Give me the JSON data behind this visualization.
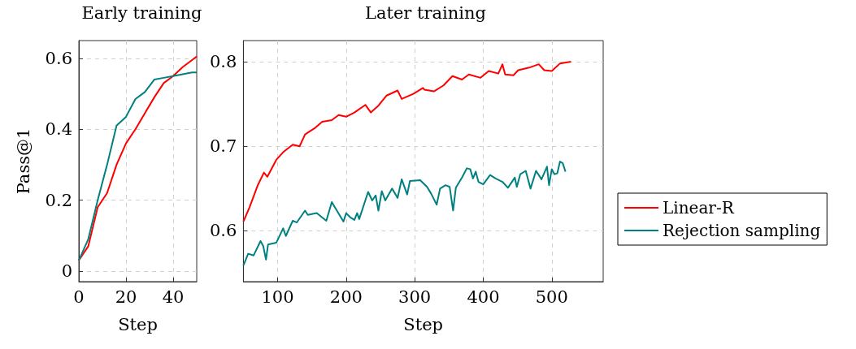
{
  "chart_data": [
    {
      "type": "line",
      "title": "Early training",
      "xlabel": "Step",
      "ylabel": "Pass@1",
      "xlim": [
        0,
        50
      ],
      "xticks": [
        0,
        20,
        40
      ],
      "ylim": [
        -0.03,
        0.65
      ],
      "yticks": [
        0,
        0.2,
        0.4,
        0.6
      ],
      "grid": true,
      "legend": false,
      "marker": "none",
      "line_style": "solid",
      "series": [
        {
          "color": "#ff0000",
          "x": [
            0,
            4,
            8,
            12,
            16,
            20,
            24,
            28,
            32,
            36,
            40,
            44,
            48,
            50
          ],
          "values": [
            0.03,
            0.07,
            0.18,
            0.22,
            0.3,
            0.36,
            0.4,
            0.445,
            0.49,
            0.53,
            0.55,
            0.575,
            0.595,
            0.605
          ]
        },
        {
          "color": "#008080",
          "x": [
            0,
            4,
            8,
            12,
            16,
            20,
            24,
            28,
            32,
            36,
            40,
            44,
            48,
            50
          ],
          "values": [
            0.03,
            0.09,
            0.2,
            0.3,
            0.41,
            0.435,
            0.485,
            0.505,
            0.54,
            0.545,
            0.55,
            0.555,
            0.56,
            0.56
          ]
        }
      ]
    },
    {
      "type": "line",
      "title": "Later training",
      "xlabel": "Step",
      "xlim": [
        50,
        575
      ],
      "xticks": [
        100,
        200,
        300,
        400,
        500
      ],
      "ylim": [
        0.54,
        0.825
      ],
      "yticks": [
        0.6,
        0.7,
        0.8
      ],
      "grid": true,
      "legend": "right",
      "marker": "none",
      "line_style": "solid",
      "series": [
        {
          "name": "Linear-R",
          "color": "#ff0000",
          "x": [
            50,
            59,
            71,
            80,
            85,
            98,
            108,
            122,
            132,
            140,
            155,
            165,
            179,
            189,
            200,
            212,
            228,
            236,
            247,
            259,
            275,
            281,
            298,
            312,
            314,
            328,
            342,
            355,
            369,
            379,
            396,
            408,
            422,
            428,
            432,
            444,
            451,
            467,
            481,
            489,
            500,
            512,
            528
          ],
          "values": [
            0.611,
            0.628,
            0.654,
            0.669,
            0.664,
            0.684,
            0.693,
            0.702,
            0.7,
            0.714,
            0.722,
            0.729,
            0.731,
            0.737,
            0.735,
            0.74,
            0.749,
            0.74,
            0.748,
            0.76,
            0.766,
            0.756,
            0.762,
            0.769,
            0.767,
            0.765,
            0.772,
            0.783,
            0.779,
            0.785,
            0.781,
            0.789,
            0.786,
            0.797,
            0.785,
            0.784,
            0.79,
            0.793,
            0.797,
            0.79,
            0.789,
            0.798,
            0.8
          ]
        },
        {
          "name": "Rejection sampling",
          "color": "#008080",
          "x": [
            50,
            57,
            65,
            75,
            79,
            83,
            86,
            98,
            108,
            112,
            122,
            128,
            140,
            144,
            157,
            171,
            179,
            196,
            200,
            206,
            212,
            216,
            219,
            232,
            238,
            243,
            247,
            252,
            257,
            267,
            275,
            281,
            289,
            293,
            308,
            318,
            324,
            332,
            337,
            345,
            351,
            356,
            360,
            369,
            376,
            381,
            385,
            389,
            393,
            400,
            410,
            418,
            428,
            436,
            446,
            449,
            454,
            462,
            469,
            477,
            485,
            493,
            496,
            500,
            504,
            508,
            512,
            516,
            520
          ],
          "values": [
            0.559,
            0.573,
            0.571,
            0.588,
            0.582,
            0.566,
            0.584,
            0.586,
            0.603,
            0.594,
            0.612,
            0.61,
            0.624,
            0.619,
            0.621,
            0.612,
            0.634,
            0.611,
            0.621,
            0.616,
            0.613,
            0.621,
            0.614,
            0.646,
            0.636,
            0.642,
            0.624,
            0.647,
            0.636,
            0.65,
            0.639,
            0.661,
            0.643,
            0.659,
            0.66,
            0.652,
            0.644,
            0.631,
            0.65,
            0.654,
            0.652,
            0.624,
            0.651,
            0.663,
            0.674,
            0.673,
            0.662,
            0.67,
            0.658,
            0.655,
            0.666,
            0.662,
            0.658,
            0.651,
            0.663,
            0.652,
            0.667,
            0.671,
            0.65,
            0.671,
            0.661,
            0.676,
            0.654,
            0.673,
            0.667,
            0.668,
            0.682,
            0.68,
            0.67
          ]
        }
      ]
    }
  ]
}
